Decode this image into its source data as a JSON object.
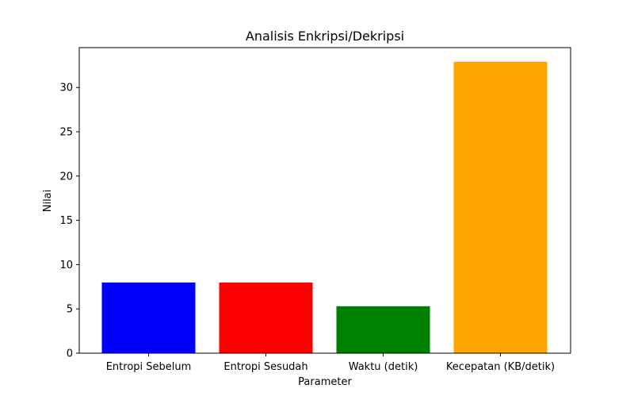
{
  "chart_data": {
    "type": "bar",
    "title": "Analisis Enkripsi/Dekripsi",
    "xlabel": "Parameter",
    "ylabel": "Nilai",
    "categories": [
      "Entropi Sebelum",
      "Entropi Sesudah",
      "Waktu (detik)",
      "Kecepatan (KB/detik)"
    ],
    "values": [
      7.98,
      7.98,
      5.3,
      32.9
    ],
    "colors": [
      "#0000ff",
      "#ff0000",
      "#008000",
      "#ffa500"
    ],
    "ylim": [
      0,
      34.5
    ],
    "yticks": [
      0,
      5,
      10,
      15,
      20,
      25,
      30
    ],
    "grid": false,
    "legend": "none"
  }
}
